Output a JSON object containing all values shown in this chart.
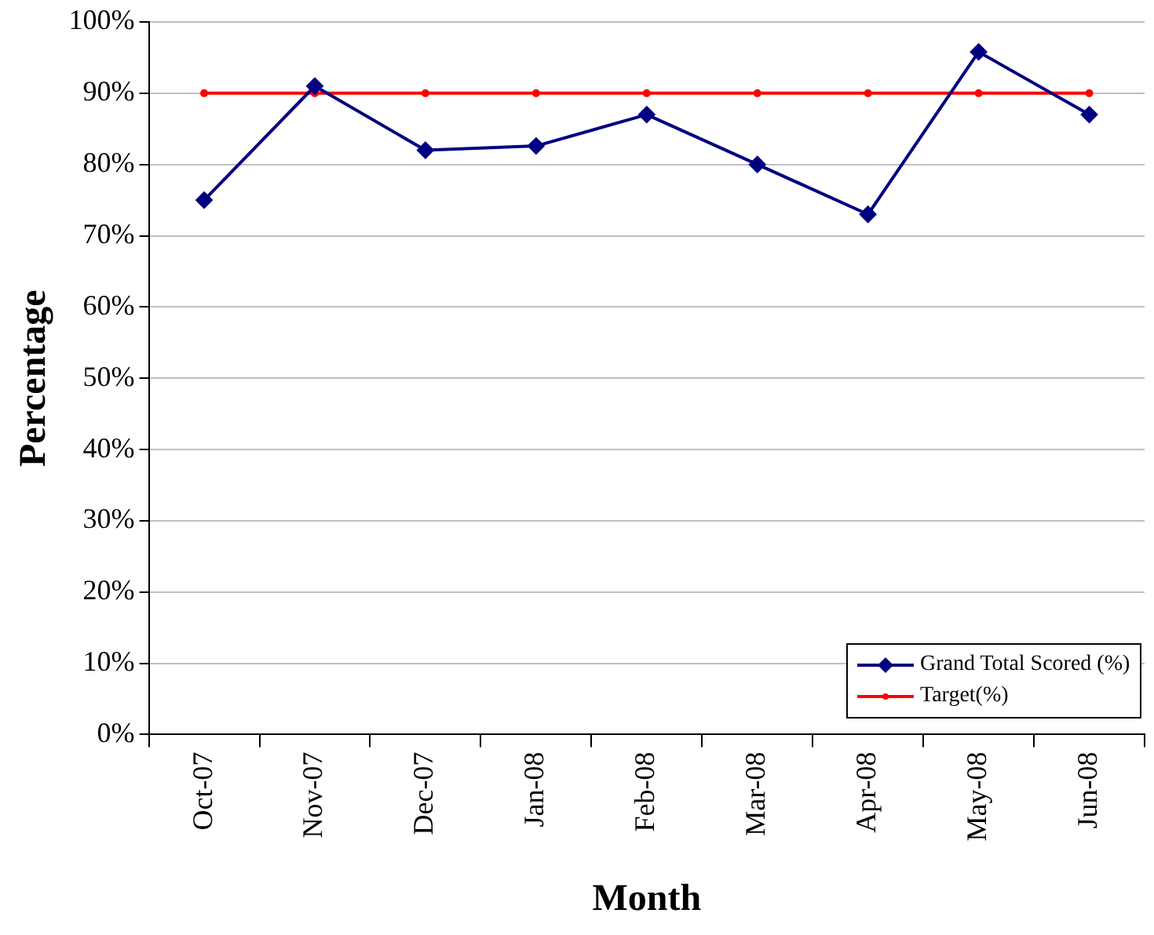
{
  "chart_data": {
    "type": "line",
    "xlabel": "Month",
    "ylabel": "Percentage",
    "categories": [
      "Oct-07",
      "Nov-07",
      "Dec-07",
      "Jan-08",
      "Feb-08",
      "Mar-08",
      "Apr-08",
      "May-08",
      "Jun-08"
    ],
    "series": [
      {
        "name": "Grand Total Scored (%)",
        "color": "#000080",
        "marker": "diamond",
        "values": [
          75,
          91,
          82,
          82.6,
          87,
          80,
          73,
          95.8,
          87
        ]
      },
      {
        "name": "Target(%)",
        "color": "#ff0000",
        "marker": "circle",
        "values": [
          90,
          90,
          90,
          90,
          90,
          90,
          90,
          90,
          90
        ]
      }
    ],
    "ylim": [
      0,
      100
    ],
    "yticks": [
      {
        "value": 0,
        "label": "0%"
      },
      {
        "value": 10,
        "label": "10%"
      },
      {
        "value": 20,
        "label": "20%"
      },
      {
        "value": 30,
        "label": "30%"
      },
      {
        "value": 40,
        "label": "40%"
      },
      {
        "value": 50,
        "label": "50%"
      },
      {
        "value": 60,
        "label": "60%"
      },
      {
        "value": 70,
        "label": "70%"
      },
      {
        "value": 80,
        "label": "80%"
      },
      {
        "value": 90,
        "label": "90%"
      },
      {
        "value": 100,
        "label": "100%"
      }
    ],
    "grid": "y",
    "legend": "bottom right",
    "line_style": "solid"
  }
}
